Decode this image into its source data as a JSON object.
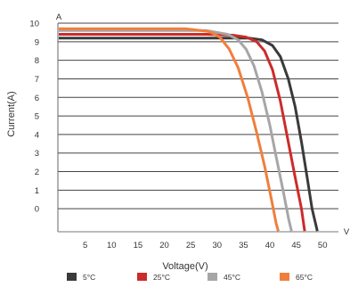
{
  "chart_data": {
    "type": "line",
    "title": "",
    "xlabel": "Voltage(V)",
    "ylabel": "Current(A)",
    "y_unit_label": "A",
    "x_unit_label": "V",
    "xlim": [
      0,
      53
    ],
    "ylim": [
      -1,
      10
    ],
    "x_ticks": [
      "5",
      "10",
      "15",
      "20",
      "25",
      "30",
      "35",
      "40",
      "45",
      "50"
    ],
    "y_ticks": [
      "0",
      "1",
      "2",
      "3",
      "4",
      "5",
      "6",
      "7",
      "8",
      "9",
      "10"
    ],
    "grid": "horizontal",
    "legend_position": "bottom",
    "series": [
      {
        "name": "5°C",
        "color": "#3a3a3a",
        "x": [
          0,
          30,
          36,
          38.5,
          40.5,
          42,
          43.5,
          44.8,
          46,
          47,
          48,
          49
        ],
        "y": [
          9.2,
          9.2,
          9.2,
          9.1,
          8.8,
          8.2,
          7.0,
          5.5,
          3.6,
          1.8,
          0.0,
          -1.2
        ]
      },
      {
        "name": "25°C",
        "color": "#cc2b2b",
        "x": [
          0,
          28,
          33,
          35.5,
          37.5,
          39,
          40.5,
          42,
          43.5,
          44.8,
          46,
          46.6
        ],
        "y": [
          9.4,
          9.4,
          9.35,
          9.25,
          9.0,
          8.5,
          7.5,
          5.8,
          3.6,
          1.7,
          0.0,
          -1.2
        ]
      },
      {
        "name": "45°C",
        "color": "#a6a6a6",
        "x": [
          0,
          28,
          32,
          34,
          35.5,
          37,
          38.5,
          40,
          41.2,
          42.5,
          43.6,
          44.1
        ],
        "y": [
          9.6,
          9.6,
          9.4,
          9.1,
          8.6,
          7.7,
          6.3,
          4.5,
          2.8,
          1.0,
          -0.6,
          -1.2
        ]
      },
      {
        "name": "65°C",
        "color": "#f07f3c",
        "x": [
          0,
          24,
          28.5,
          30.5,
          32.3,
          34,
          35.8,
          37.5,
          39,
          40.3,
          41.2,
          41.6
        ],
        "y": [
          9.7,
          9.7,
          9.55,
          9.25,
          8.6,
          7.6,
          6.0,
          4.1,
          2.3,
          0.5,
          -0.8,
          -1.2
        ]
      }
    ]
  }
}
